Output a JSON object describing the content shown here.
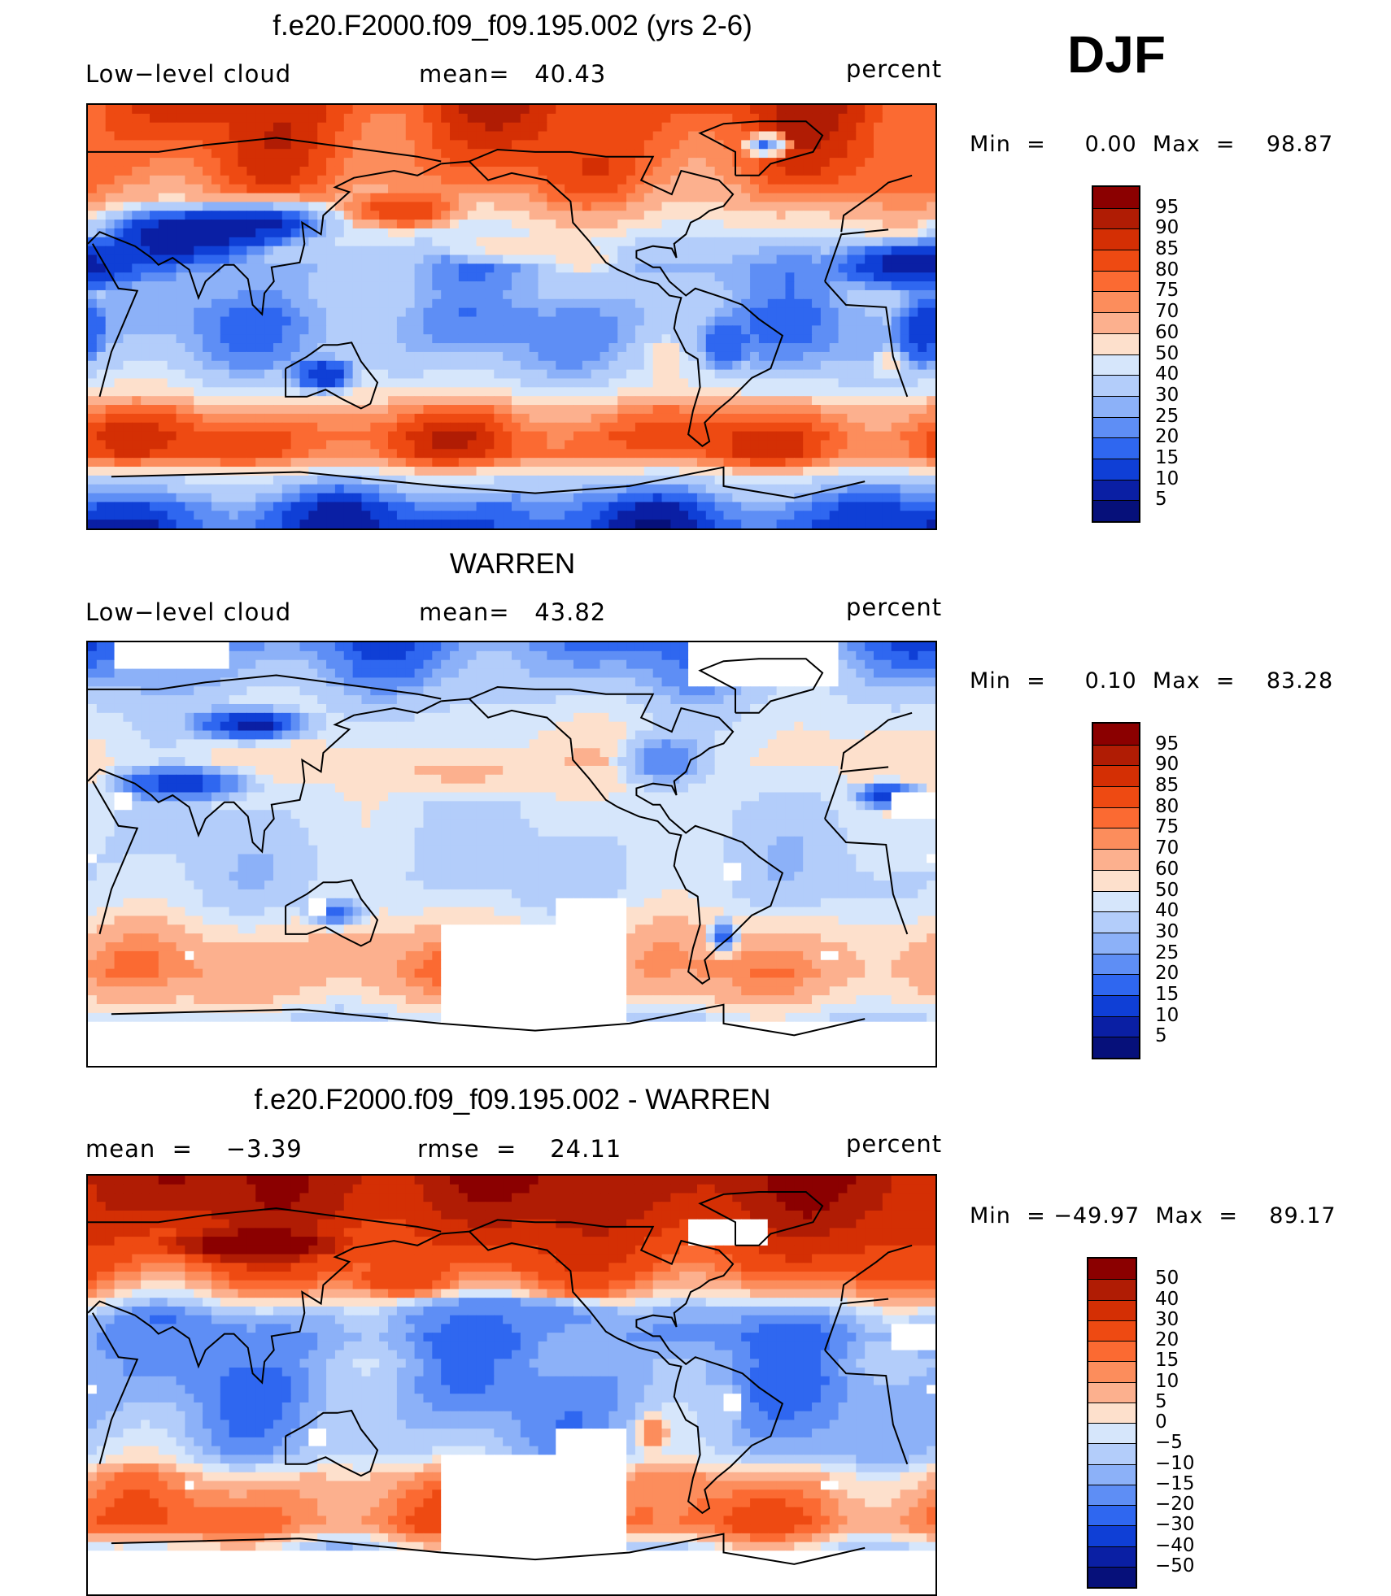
{
  "season": "DJF",
  "panels": [
    {
      "title": "f.e20.F2000.f09_f09.195.002 (yrs 2-6)",
      "left_label": "Low−level cloud",
      "center_label": "mean=   40.43",
      "right_label": "percent",
      "minmax": "Min  =     0.00  Max  =    98.87",
      "colorbar": {
        "labels": [
          "95",
          "90",
          "85",
          "80",
          "75",
          "70",
          "60",
          "50",
          "40",
          "30",
          "25",
          "20",
          "15",
          "10",
          "5"
        ],
        "colors": [
          "#8b0000",
          "#b01c04",
          "#d42f04",
          "#ee4a12",
          "#fb6a32",
          "#fc8d5c",
          "#fcb08e",
          "#fde0cc",
          "#d6e6fb",
          "#b3cdfa",
          "#8cb1f8",
          "#5e8ef5",
          "#2f67f0",
          "#0f3fd6",
          "#0a1fa4",
          "#06107a"
        ]
      },
      "map": {
        "type": "lat-lon field",
        "zonal_profile": [
          [
            90,
            85
          ],
          [
            75,
            82
          ],
          [
            60,
            78
          ],
          [
            50,
            70
          ],
          [
            40,
            55
          ],
          [
            30,
            35
          ],
          [
            20,
            28
          ],
          [
            10,
            30
          ],
          [
            0,
            25
          ],
          [
            -10,
            26
          ],
          [
            -20,
            32
          ],
          [
            -30,
            45
          ],
          [
            -40,
            72
          ],
          [
            -50,
            82
          ],
          [
            -60,
            80
          ],
          [
            -70,
            35
          ],
          [
            -80,
            18
          ],
          [
            -90,
            12
          ]
        ],
        "anomalies": [
          {
            "lon": 20,
            "lat": 22,
            "value": 6,
            "rx": 40,
            "ry": 14
          },
          {
            "lon": 70,
            "lat": 35,
            "value": 5,
            "rx": 50,
            "ry": 16
          },
          {
            "lon": 105,
            "lat": 40,
            "value": 8,
            "rx": 40,
            "ry": 12
          },
          {
            "lon": 165,
            "lat": 45,
            "value": 85,
            "rx": 30,
            "ry": 10
          },
          {
            "lon": -150,
            "lat": 30,
            "value": 55,
            "rx": 40,
            "ry": 8
          },
          {
            "lon": -42,
            "lat": 73,
            "value": 30,
            "rx": 12,
            "ry": 6
          },
          {
            "lon": -42,
            "lat": 72,
            "value": 5,
            "rx": 4,
            "ry": 2
          },
          {
            "lon": 130,
            "lat": -25,
            "value": 10,
            "rx": 18,
            "ry": 10
          },
          {
            "lon": 25,
            "lat": -5,
            "value": 12,
            "rx": 15,
            "ry": 20
          },
          {
            "lon": -60,
            "lat": -12,
            "value": 15,
            "rx": 12,
            "ry": 14
          },
          {
            "lon": -85,
            "lat": -18,
            "value": 60,
            "rx": 10,
            "ry": 10
          },
          {
            "lon": -120,
            "lat": 25,
            "value": 60,
            "rx": 15,
            "ry": 8
          },
          {
            "lon": 10,
            "lat": -20,
            "value": 55,
            "rx": 8,
            "ry": 8
          }
        ],
        "missing": []
      }
    },
    {
      "title": "WARREN",
      "left_label": "Low−level cloud",
      "center_label": "mean=   43.82",
      "right_label": "percent",
      "minmax": "Min  =     0.10  Max  =    83.28",
      "colorbar": {
        "labels": [
          "95",
          "90",
          "85",
          "80",
          "75",
          "70",
          "60",
          "50",
          "40",
          "30",
          "25",
          "20",
          "15",
          "10",
          "5"
        ],
        "colors": [
          "#8b0000",
          "#b01c04",
          "#d42f04",
          "#ee4a12",
          "#fb6a32",
          "#fc8d5c",
          "#fcb08e",
          "#fde0cc",
          "#d6e6fb",
          "#b3cdfa",
          "#8cb1f8",
          "#5e8ef5",
          "#2f67f0",
          "#0f3fd6",
          "#0a1fa4",
          "#06107a"
        ]
      },
      "map": {
        "type": "lat-lon field",
        "zonal_profile": [
          [
            90,
            20
          ],
          [
            75,
            28
          ],
          [
            60,
            42
          ],
          [
            50,
            48
          ],
          [
            40,
            52
          ],
          [
            30,
            48
          ],
          [
            20,
            42
          ],
          [
            10,
            40
          ],
          [
            0,
            38
          ],
          [
            -10,
            38
          ],
          [
            -20,
            42
          ],
          [
            -30,
            55
          ],
          [
            -40,
            66
          ],
          [
            -50,
            70
          ],
          [
            -60,
            62
          ],
          [
            -70,
            40
          ],
          [
            -90,
            40
          ]
        ],
        "anomalies": [
          {
            "lon": 100,
            "lat": 55,
            "value": 8,
            "rx": 35,
            "ry": 10
          },
          {
            "lon": 70,
            "lat": 30,
            "value": 12,
            "rx": 40,
            "ry": 10
          },
          {
            "lon": 10,
            "lat": 25,
            "value": 10,
            "rx": 20,
            "ry": 8
          },
          {
            "lon": 135,
            "lat": -25,
            "value": 18,
            "rx": 18,
            "ry": 8
          },
          {
            "lon": -85,
            "lat": 40,
            "value": 20,
            "rx": 25,
            "ry": 15
          },
          {
            "lon": -60,
            "lat": -35,
            "value": 15,
            "rx": 8,
            "ry": 10
          },
          {
            "lon": -170,
            "lat": 35,
            "value": 62,
            "rx": 50,
            "ry": 12
          }
        ],
        "missing": [
          {
            "lon0": 40,
            "lat0": 80,
            "lon1": 90,
            "lat1": 90
          },
          {
            "lon0": -75,
            "lat0": 70,
            "lon1": -10,
            "lat1": 90
          },
          {
            "lon0": -180,
            "lat0": -30,
            "lon1": -100,
            "lat1": -90
          },
          {
            "lon0": -130,
            "lat0": -20,
            "lon1": -100,
            "lat1": -30
          },
          {
            "lon0": -180,
            "lat0": -70,
            "lon1": 180,
            "lat1": -90
          },
          {
            "lon0": 10,
            "lat0": 25,
            "lon1": 30,
            "lat1": 15
          },
          {
            "lon0": 40,
            "lat0": 25,
            "lon1": 50,
            "lat1": 18
          },
          {
            "lon0": 125,
            "lat0": -20,
            "lon1": 130,
            "lat1": -25
          },
          {
            "lon0": -60,
            "lat0": -5,
            "lon1": -53,
            "lat1": -10
          },
          {
            "lon0": -20,
            "lat0": -42,
            "lon1": -12,
            "lat1": -45
          },
          {
            "lon0": 70,
            "lat0": -40,
            "lon1": 76,
            "lat1": -45
          },
          {
            "lon0": 28,
            "lat0": 0,
            "lon1": 32,
            "lat1": -3
          }
        ]
      }
    },
    {
      "title": "f.e20.F2000.f09_f09.195.002 - WARREN",
      "left_label": "mean  =    −3.39",
      "center_label": "rmse  =    24.11",
      "right_label": "percent",
      "minmax": "Min  = −49.97  Max  =    89.17",
      "colorbar": {
        "labels": [
          "50",
          "40",
          "30",
          "20",
          "15",
          "10",
          "5",
          "0",
          "−5",
          "−10",
          "−15",
          "−20",
          "−30",
          "−40",
          "−50"
        ],
        "colors": [
          "#8b0000",
          "#b01c04",
          "#d42f04",
          "#ee4a12",
          "#fb6a32",
          "#fc8d5c",
          "#fcb08e",
          "#fde0cc",
          "#d6e6fb",
          "#b3cdfa",
          "#8cb1f8",
          "#5e8ef5",
          "#2f67f0",
          "#0f3fd6",
          "#0a1fa4",
          "#06107a"
        ]
      },
      "map": {
        "type": "lat-lon field",
        "zonal_profile": [
          [
            90,
            48
          ],
          [
            75,
            42
          ],
          [
            60,
            30
          ],
          [
            50,
            22
          ],
          [
            40,
            8
          ],
          [
            30,
            -12
          ],
          [
            20,
            -18
          ],
          [
            10,
            -14
          ],
          [
            0,
            -16
          ],
          [
            -10,
            -14
          ],
          [
            -20,
            -12
          ],
          [
            -30,
            -8
          ],
          [
            -40,
            8
          ],
          [
            -50,
            14
          ],
          [
            -60,
            18
          ],
          [
            -70,
            -2
          ],
          [
            -90,
            -4
          ]
        ],
        "anomalies": [
          {
            "lon": 100,
            "lat": 60,
            "value": 60,
            "rx": 45,
            "ry": 8
          },
          {
            "lon": 165,
            "lat": 45,
            "value": 25,
            "rx": 25,
            "ry": 8
          },
          {
            "lon": -90,
            "lat": -20,
            "value": 15,
            "rx": 8,
            "ry": 10
          },
          {
            "lon": -150,
            "lat": 30,
            "value": -20,
            "rx": 60,
            "ry": 10
          },
          {
            "lon": 40,
            "lat": 20,
            "value": -15,
            "rx": 40,
            "ry": 10
          },
          {
            "lon": -60,
            "lat": -10,
            "value": -5,
            "rx": 10,
            "ry": 12
          }
        ],
        "missing": [
          {
            "lon0": -180,
            "lat0": -30,
            "lon1": -100,
            "lat1": -90
          },
          {
            "lon0": -130,
            "lat0": -20,
            "lon1": -100,
            "lat1": -30
          },
          {
            "lon0": -180,
            "lat0": -70,
            "lon1": 180,
            "lat1": -90
          },
          {
            "lon0": 10,
            "lat0": 25,
            "lon1": 30,
            "lat1": 15
          },
          {
            "lon0": 125,
            "lat0": -20,
            "lon1": 130,
            "lat1": -25
          },
          {
            "lon0": -60,
            "lat0": -5,
            "lon1": -53,
            "lat1": -10
          },
          {
            "lon0": -20,
            "lat0": -42,
            "lon1": -12,
            "lat1": -45
          },
          {
            "lon0": 70,
            "lat0": -40,
            "lon1": 76,
            "lat1": -45
          },
          {
            "lon0": -75,
            "lat0": 70,
            "lon1": -40,
            "lat1": 60
          },
          {
            "lon0": 28,
            "lat0": 0,
            "lon1": 32,
            "lat1": -3
          }
        ]
      }
    }
  ]
}
